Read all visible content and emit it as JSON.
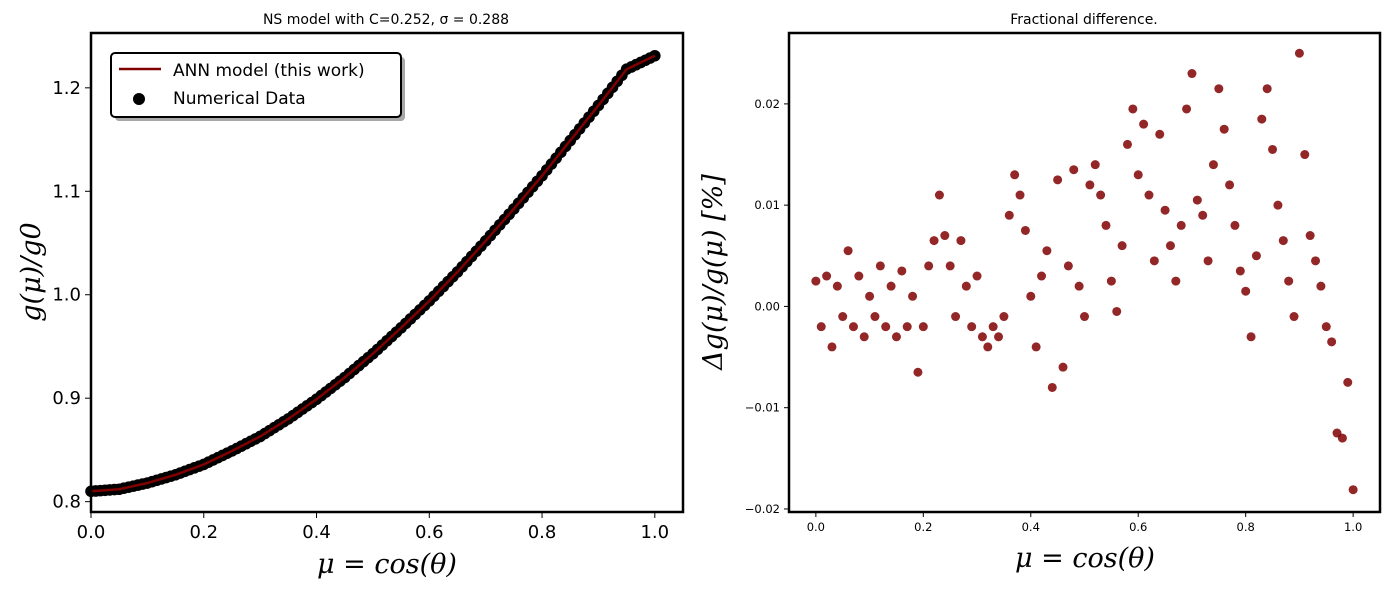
{
  "chart_data": [
    {
      "type": "scatter",
      "title": "NS model with C=0.252, σ = 0.288",
      "xlabel": "μ = cos(θ)",
      "ylabel": "g(μ)/g0",
      "xlim": [
        0.0,
        1.05
      ],
      "ylim": [
        0.79,
        1.253
      ],
      "xticks": [
        "0.0",
        "0.2",
        "0.4",
        "0.6",
        "0.8",
        "1.0"
      ],
      "yticks": [
        "0.8",
        "0.9",
        "1.0",
        "1.1",
        "1.2"
      ],
      "legend_position": "upper-left",
      "series": [
        {
          "name": "ANN model (this work)",
          "kind": "line",
          "color": "#800000",
          "x": [
            0.0,
            0.05,
            0.1,
            0.15,
            0.2,
            0.25,
            0.3,
            0.35,
            0.4,
            0.45,
            0.5,
            0.55,
            0.6,
            0.65,
            0.7,
            0.75,
            0.8,
            0.85,
            0.9,
            0.95,
            1.0
          ],
          "y": [
            0.81,
            0.812,
            0.818,
            0.826,
            0.836,
            0.849,
            0.863,
            0.88,
            0.899,
            0.92,
            0.943,
            0.968,
            0.994,
            1.022,
            1.052,
            1.083,
            1.115,
            1.149,
            1.183,
            1.218,
            1.231
          ]
        },
        {
          "name": "Numerical Data",
          "kind": "scatter",
          "color": "#000000",
          "x": [
            0.0,
            0.05,
            0.1,
            0.15,
            0.2,
            0.25,
            0.3,
            0.35,
            0.4,
            0.45,
            0.5,
            0.55,
            0.6,
            0.65,
            0.7,
            0.75,
            0.8,
            0.85,
            0.9,
            0.95,
            1.0
          ],
          "y": [
            0.81,
            0.812,
            0.818,
            0.826,
            0.836,
            0.849,
            0.863,
            0.88,
            0.899,
            0.92,
            0.943,
            0.968,
            0.994,
            1.022,
            1.052,
            1.083,
            1.115,
            1.149,
            1.183,
            1.218,
            1.231
          ]
        }
      ]
    },
    {
      "type": "scatter",
      "title": "Fractional difference.",
      "xlabel": "μ = cos(θ)",
      "ylabel": "Δg(μ)/g(μ) [%]",
      "xlim": [
        -0.05,
        1.05
      ],
      "ylim": [
        -0.0203,
        0.027
      ],
      "xticks": [
        "0.0",
        "0.2",
        "0.4",
        "0.6",
        "0.8",
        "1.0"
      ],
      "yticks": [
        "−0.02",
        "−0.01",
        "0.00",
        "0.01",
        "0.02"
      ],
      "series": [
        {
          "color": "#800000",
          "x": [
            0.0,
            0.01,
            0.02,
            0.03,
            0.04,
            0.05,
            0.06,
            0.07,
            0.08,
            0.09,
            0.1,
            0.11,
            0.12,
            0.13,
            0.14,
            0.15,
            0.16,
            0.17,
            0.18,
            0.19,
            0.2,
            0.21,
            0.22,
            0.23,
            0.24,
            0.25,
            0.26,
            0.27,
            0.28,
            0.29,
            0.3,
            0.31,
            0.32,
            0.33,
            0.34,
            0.35,
            0.36,
            0.37,
            0.38,
            0.39,
            0.4,
            0.41,
            0.42,
            0.43,
            0.44,
            0.45,
            0.46,
            0.47,
            0.48,
            0.49,
            0.5,
            0.51,
            0.52,
            0.53,
            0.54,
            0.55,
            0.56,
            0.57,
            0.58,
            0.59,
            0.6,
            0.61,
            0.62,
            0.63,
            0.64,
            0.65,
            0.66,
            0.67,
            0.68,
            0.69,
            0.7,
            0.71,
            0.72,
            0.73,
            0.74,
            0.75,
            0.76,
            0.77,
            0.78,
            0.79,
            0.8,
            0.81,
            0.82,
            0.83,
            0.84,
            0.85,
            0.86,
            0.87,
            0.88,
            0.89,
            0.9,
            0.91,
            0.92,
            0.93,
            0.94,
            0.95,
            0.96,
            0.97,
            0.98,
            0.99,
            1.0
          ],
          "y": [
            0.0025,
            -0.002,
            0.003,
            -0.004,
            0.002,
            -0.001,
            0.0055,
            -0.002,
            0.003,
            -0.003,
            0.001,
            -0.001,
            0.004,
            -0.002,
            0.002,
            -0.003,
            0.0035,
            -0.002,
            0.001,
            -0.0065,
            -0.002,
            0.004,
            0.0065,
            0.011,
            0.007,
            0.004,
            -0.001,
            0.0065,
            0.002,
            -0.002,
            0.003,
            -0.003,
            -0.004,
            -0.002,
            -0.003,
            -0.001,
            0.009,
            0.013,
            0.011,
            0.0075,
            0.001,
            -0.004,
            0.003,
            0.0055,
            -0.008,
            0.0125,
            -0.006,
            0.004,
            0.0135,
            0.002,
            -0.001,
            0.012,
            0.014,
            0.011,
            0.008,
            0.0025,
            -0.0005,
            0.006,
            0.016,
            0.0195,
            0.013,
            0.018,
            0.011,
            0.0045,
            0.017,
            0.0095,
            0.006,
            0.0025,
            0.008,
            0.0195,
            0.023,
            0.0105,
            0.009,
            0.0045,
            0.014,
            0.0215,
            0.0175,
            0.012,
            0.008,
            0.0035,
            0.0015,
            -0.003,
            0.005,
            0.0185,
            0.0215,
            0.0155,
            0.01,
            0.0065,
            0.0025,
            -0.001,
            0.025,
            0.015,
            0.007,
            0.0045,
            0.002,
            -0.002,
            -0.0035,
            -0.0125,
            -0.013,
            -0.0075,
            -0.0181
          ]
        }
      ]
    }
  ]
}
